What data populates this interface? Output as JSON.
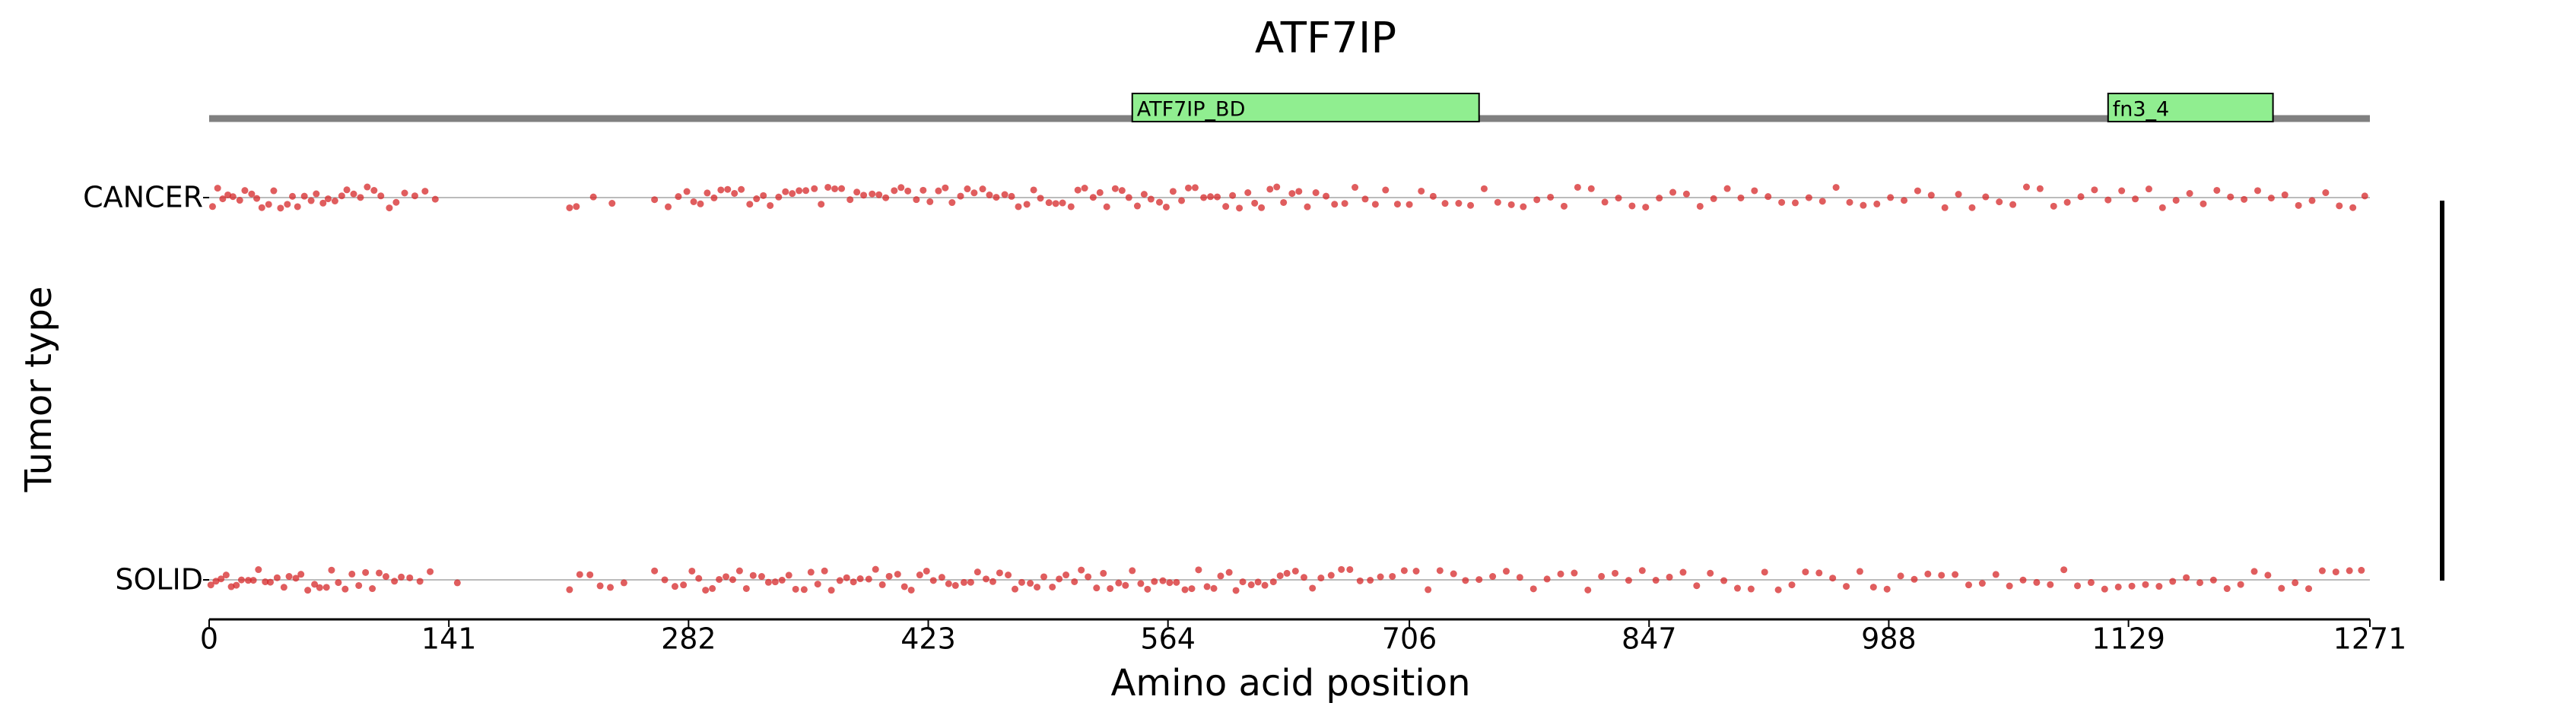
{
  "chart_data": {
    "type": "strip",
    "title": "ATF7IP",
    "xlabel": "Amino acid position",
    "ylabel": "Tumor type",
    "xlim": [
      0,
      1271
    ],
    "xticks": [
      0,
      141,
      282,
      423,
      564,
      706,
      847,
      988,
      1129,
      1271
    ],
    "protein_color": "#808080",
    "domains": [
      {
        "name": "ATF7IP_BD",
        "start": 543,
        "end": 747,
        "color": "#90ee90"
      },
      {
        "name": "fn3_4",
        "start": 1117,
        "end": 1214,
        "color": "#90ee90"
      }
    ],
    "series": [
      {
        "name": "CANCER",
        "color": "#d62728",
        "values": [
          2,
          5,
          8,
          11,
          14,
          18,
          21,
          25,
          28,
          31,
          35,
          38,
          42,
          46,
          49,
          52,
          56,
          60,
          63,
          67,
          70,
          74,
          78,
          81,
          85,
          89,
          93,
          97,
          101,
          106,
          110,
          115,
          121,
          127,
          133,
          212,
          216,
          226,
          237,
          262,
          270,
          276,
          281,
          285,
          289,
          293,
          297,
          301,
          305,
          309,
          313,
          318,
          322,
          326,
          330,
          335,
          339,
          343,
          347,
          351,
          356,
          360,
          364,
          368,
          372,
          377,
          381,
          385,
          390,
          394,
          398,
          403,
          407,
          411,
          416,
          420,
          424,
          429,
          433,
          437,
          442,
          446,
          450,
          455,
          459,
          463,
          468,
          472,
          476,
          481,
          485,
          489,
          494,
          498,
          502,
          507,
          511,
          515,
          520,
          524,
          528,
          533,
          537,
          541,
          546,
          550,
          554,
          559,
          563,
          567,
          572,
          576,
          580,
          585,
          589,
          593,
          598,
          602,
          606,
          611,
          615,
          619,
          624,
          628,
          632,
          637,
          641,
          646,
          651,
          657,
          662,
          668,
          674,
          680,
          686,
          692,
          699,
          706,
          713,
          720,
          727,
          735,
          742,
          750,
          758,
          766,
          773,
          781,
          789,
          797,
          805,
          813,
          821,
          829,
          837,
          845,
          853,
          861,
          869,
          877,
          885,
          893,
          901,
          909,
          917,
          925,
          933,
          941,
          949,
          957,
          965,
          973,
          981,
          989,
          997,
          1005,
          1013,
          1021,
          1029,
          1037,
          1045,
          1053,
          1061,
          1069,
          1077,
          1085,
          1093,
          1101,
          1109,
          1117,
          1125,
          1133,
          1141,
          1149,
          1157,
          1165,
          1173,
          1181,
          1189,
          1197,
          1205,
          1213,
          1221,
          1229,
          1237,
          1245,
          1253,
          1261,
          1268
        ]
      },
      {
        "name": "SOLID",
        "color": "#d62728",
        "values": [
          1,
          4,
          7,
          10,
          13,
          16,
          19,
          23,
          26,
          29,
          33,
          36,
          40,
          44,
          47,
          51,
          54,
          58,
          62,
          65,
          69,
          72,
          76,
          80,
          84,
          88,
          92,
          96,
          100,
          104,
          109,
          113,
          118,
          124,
          130,
          146,
          212,
          218,
          224,
          230,
          236,
          244,
          262,
          268,
          274,
          279,
          284,
          288,
          292,
          296,
          300,
          304,
          308,
          312,
          316,
          320,
          325,
          329,
          333,
          337,
          341,
          345,
          350,
          354,
          358,
          362,
          366,
          371,
          375,
          379,
          383,
          388,
          392,
          396,
          400,
          405,
          409,
          413,
          418,
          422,
          426,
          431,
          435,
          439,
          444,
          448,
          452,
          457,
          461,
          465,
          470,
          474,
          478,
          483,
          487,
          491,
          496,
          500,
          504,
          509,
          513,
          517,
          522,
          526,
          530,
          535,
          539,
          543,
          548,
          552,
          556,
          561,
          565,
          569,
          574,
          578,
          582,
          587,
          591,
          595,
          600,
          604,
          608,
          613,
          617,
          621,
          626,
          630,
          634,
          639,
          644,
          649,
          654,
          660,
          666,
          671,
          677,
          683,
          689,
          696,
          703,
          710,
          717,
          724,
          732,
          739,
          747,
          755,
          763,
          771,
          779,
          787,
          795,
          803,
          811,
          819,
          827,
          835,
          843,
          851,
          859,
          867,
          875,
          883,
          891,
          899,
          907,
          915,
          923,
          931,
          939,
          947,
          955,
          963,
          971,
          979,
          987,
          995,
          1003,
          1011,
          1019,
          1027,
          1035,
          1043,
          1051,
          1059,
          1067,
          1075,
          1083,
          1091,
          1099,
          1107,
          1115,
          1123,
          1131,
          1139,
          1147,
          1155,
          1163,
          1171,
          1179,
          1187,
          1195,
          1203,
          1211,
          1219,
          1227,
          1235,
          1243,
          1251,
          1259,
          1266
        ]
      }
    ]
  }
}
